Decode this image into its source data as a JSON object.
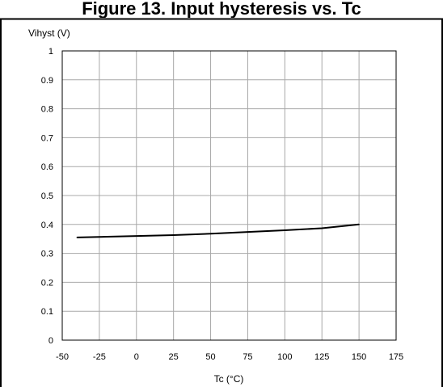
{
  "chart_data": {
    "type": "line",
    "title": "Figure 13. Input hysteresis vs. Tc",
    "xlabel": "Tc (°C)",
    "ylabel": "Vihyst (V)",
    "xlim": [
      -50,
      175
    ],
    "ylim": [
      0,
      1
    ],
    "x_ticks": [
      -50,
      -25,
      0,
      25,
      50,
      75,
      100,
      125,
      150,
      175
    ],
    "y_ticks": [
      0,
      0.1,
      0.2,
      0.3,
      0.4,
      0.5,
      0.6,
      0.7,
      0.8,
      0.9,
      1
    ],
    "grid": true,
    "series": [
      {
        "x": [
          -40,
          -25,
          0,
          25,
          50,
          75,
          100,
          125,
          150
        ],
        "y": [
          0.355,
          0.357,
          0.36,
          0.363,
          0.368,
          0.374,
          0.38,
          0.387,
          0.4
        ],
        "color": "#000000"
      }
    ]
  }
}
